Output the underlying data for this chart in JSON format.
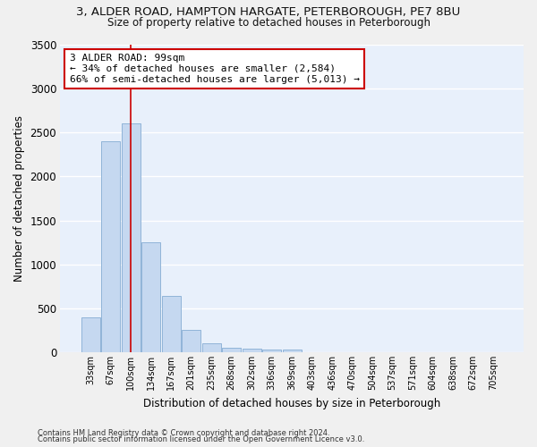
{
  "title1": "3, ALDER ROAD, HAMPTON HARGATE, PETERBOROUGH, PE7 8BU",
  "title2": "Size of property relative to detached houses in Peterborough",
  "xlabel": "Distribution of detached houses by size in Peterborough",
  "ylabel": "Number of detached properties",
  "footnote1": "Contains HM Land Registry data © Crown copyright and database right 2024.",
  "footnote2": "Contains public sector information licensed under the Open Government Licence v3.0.",
  "categories": [
    "33sqm",
    "67sqm",
    "100sqm",
    "134sqm",
    "167sqm",
    "201sqm",
    "235sqm",
    "268sqm",
    "302sqm",
    "336sqm",
    "369sqm",
    "403sqm",
    "436sqm",
    "470sqm",
    "504sqm",
    "537sqm",
    "571sqm",
    "604sqm",
    "638sqm",
    "672sqm",
    "705sqm"
  ],
  "values": [
    400,
    2400,
    2600,
    1250,
    640,
    250,
    100,
    55,
    40,
    30,
    30,
    0,
    0,
    0,
    0,
    0,
    0,
    0,
    0,
    0,
    0
  ],
  "bar_color": "#c5d8f0",
  "bar_edge_color": "#90b4d8",
  "background_color": "#e8f0fb",
  "grid_color": "#ffffff",
  "annotation_text": "3 ALDER ROAD: 99sqm\n← 34% of detached houses are smaller (2,584)\n66% of semi-detached houses are larger (5,013) →",
  "vline_x_index": 2,
  "vline_color": "#cc0000",
  "annotation_box_color": "#cc0000",
  "ylim": [
    0,
    3500
  ],
  "yticks": [
    0,
    500,
    1000,
    1500,
    2000,
    2500,
    3000,
    3500
  ],
  "fig_bg_color": "#f0f0f0",
  "title1_fontsize": 9.5,
  "title2_fontsize": 8.5
}
